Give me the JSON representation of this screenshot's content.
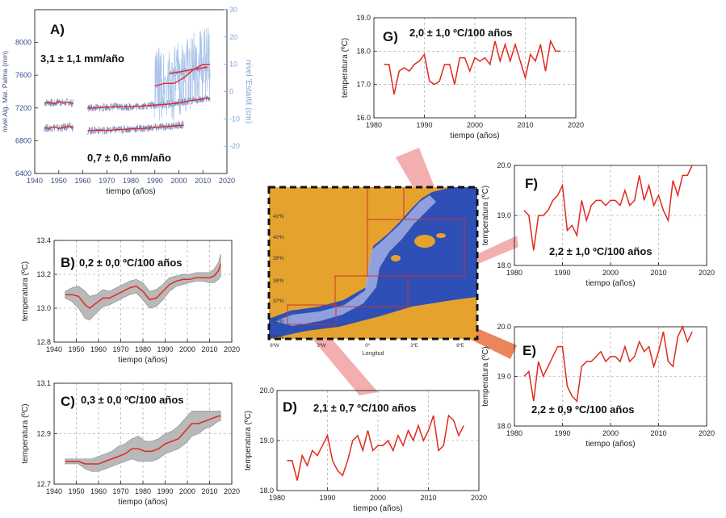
{
  "chart_data": [
    {
      "id": "A",
      "type": "line",
      "panel_label": "A)",
      "annotations": [
        "3,1 ± 1,1 mm/año",
        "0,7 ± 0,6 mm/año"
      ],
      "xlabel": "tiempo (años)",
      "ylabel": "nivel Alg. Mal. Palma (mm)",
      "ylabel_right": "nivel 'Estartit (cm)",
      "xlim": [
        1940,
        2020
      ],
      "ylim": [
        6400,
        8400
      ],
      "x_ticks": [
        "1940",
        "1950",
        "1960",
        "1970",
        "1980",
        "1990",
        "2000",
        "2010",
        "2020"
      ],
      "y_ticks": [
        "6400",
        "6800",
        "7200",
        "7600",
        "8000"
      ],
      "y2_ticks": [
        "-20",
        "-10",
        "0",
        "10",
        "20",
        "30"
      ],
      "series": [
        {
          "x": [
            1944,
            1946,
            1948,
            1950,
            1952,
            1954,
            1956
          ],
          "y": [
            7260,
            7270,
            7250,
            7280,
            7260,
            7270,
            7255
          ]
        },
        {
          "x": [
            1944,
            1946,
            1948,
            1950,
            1952,
            1954,
            1956
          ],
          "y": [
            6960,
            6950,
            6970,
            6950,
            6960,
            6975,
            6960
          ]
        },
        {
          "x": [
            1962,
            1966,
            1970,
            1975,
            1980,
            1985,
            1990,
            1995,
            2000,
            2005,
            2010,
            2013
          ],
          "y": [
            7200,
            7200,
            7210,
            7215,
            7215,
            7225,
            7235,
            7245,
            7260,
            7290,
            7310,
            7320
          ]
        },
        {
          "x": [
            1962,
            1966,
            1970,
            1975,
            1980,
            1985,
            1990,
            1995,
            2000,
            2002
          ],
          "y": [
            6920,
            6930,
            6925,
            6935,
            6945,
            6950,
            6960,
            6975,
            6985,
            6990
          ]
        },
        {
          "x": [
            1996,
            2000,
            2004,
            2008,
            2012
          ],
          "y": [
            7620,
            7640,
            7660,
            7680,
            7700
          ]
        },
        {
          "x": [
            1990,
            1994,
            1998,
            2002,
            2006,
            2010,
            2013
          ],
          "y": [
            2,
            3,
            3,
            5,
            8,
            10,
            10
          ],
          "axis": "right"
        }
      ]
    },
    {
      "id": "B",
      "type": "area",
      "panel_label": "B)",
      "annotation": "0,2 ± 0,0 ºC/100 años",
      "xlabel": "tiempo (años)",
      "ylabel": "temperatura (ºC)",
      "xlim": [
        1940,
        2020
      ],
      "ylim": [
        12.8,
        13.4
      ],
      "x_ticks": [
        "1940",
        "1950",
        "1960",
        "1970",
        "1980",
        "1990",
        "2000",
        "2010",
        "2020"
      ],
      "y_ticks": [
        "12.8",
        "13.0",
        "13.2",
        "13.4"
      ],
      "x": [
        1945,
        1948,
        1951,
        1954,
        1956,
        1959,
        1962,
        1965,
        1968,
        1971,
        1974,
        1977,
        1980,
        1983,
        1986,
        1989,
        1992,
        1995,
        1998,
        2001,
        2004,
        2007,
        2010,
        2012,
        2014,
        2015
      ],
      "y": [
        13.08,
        13.08,
        13.07,
        13.02,
        13.0,
        13.03,
        13.06,
        13.06,
        13.08,
        13.1,
        13.12,
        13.13,
        13.1,
        13.05,
        13.06,
        13.1,
        13.14,
        13.16,
        13.17,
        13.17,
        13.18,
        13.18,
        13.18,
        13.19,
        13.22,
        13.26
      ],
      "lower": [
        13.06,
        13.04,
        13.0,
        12.94,
        12.93,
        12.97,
        13.01,
        13.02,
        13.04,
        13.06,
        13.08,
        13.09,
        13.05,
        13.0,
        13.01,
        13.05,
        13.1,
        13.13,
        13.14,
        13.15,
        13.16,
        13.16,
        13.15,
        13.15,
        13.17,
        13.19
      ],
      "upper": [
        13.1,
        13.12,
        13.13,
        13.1,
        13.07,
        13.08,
        13.11,
        13.1,
        13.12,
        13.14,
        13.16,
        13.17,
        13.15,
        13.1,
        13.11,
        13.14,
        13.18,
        13.19,
        13.2,
        13.2,
        13.21,
        13.21,
        13.21,
        13.23,
        13.27,
        13.32
      ]
    },
    {
      "id": "C",
      "type": "area",
      "panel_label": "C)",
      "annotation": "0,3 ± 0,0 ºC/100 años",
      "xlabel": "tiempo (años)",
      "ylabel": "temperatura (ºC)",
      "xlim": [
        1940,
        2020
      ],
      "ylim": [
        12.7,
        13.1
      ],
      "x_ticks": [
        "1940",
        "1950",
        "1960",
        "1970",
        "1980",
        "1990",
        "2000",
        "2010",
        "2020"
      ],
      "y_ticks": [
        "12.7",
        "12.9",
        "13.1"
      ],
      "x": [
        1945,
        1948,
        1951,
        1954,
        1957,
        1960,
        1963,
        1966,
        1969,
        1972,
        1975,
        1978,
        1981,
        1984,
        1987,
        1990,
        1993,
        1996,
        1999,
        2002,
        2005,
        2008,
        2011,
        2014,
        2015
      ],
      "y": [
        12.79,
        12.79,
        12.79,
        12.78,
        12.78,
        12.78,
        12.79,
        12.8,
        12.81,
        12.82,
        12.84,
        12.84,
        12.83,
        12.83,
        12.84,
        12.86,
        12.87,
        12.88,
        12.91,
        12.94,
        12.94,
        12.95,
        12.96,
        12.97,
        12.97
      ],
      "lower": [
        12.78,
        12.78,
        12.78,
        12.76,
        12.75,
        12.75,
        12.76,
        12.77,
        12.78,
        12.79,
        12.8,
        12.79,
        12.79,
        12.79,
        12.8,
        12.82,
        12.83,
        12.84,
        12.86,
        12.89,
        12.9,
        12.92,
        12.93,
        12.95,
        12.95
      ],
      "upper": [
        12.8,
        12.8,
        12.8,
        12.8,
        12.8,
        12.81,
        12.82,
        12.83,
        12.85,
        12.86,
        12.88,
        12.89,
        12.87,
        12.87,
        12.88,
        12.9,
        12.91,
        12.93,
        12.96,
        12.99,
        12.99,
        12.99,
        12.99,
        12.99,
        12.99
      ]
    },
    {
      "id": "D",
      "type": "line",
      "panel_label": "D)",
      "annotation": "2,1 ± 0,7 ºC/100 años",
      "xlabel": "tiempo (años)",
      "ylabel": "temperatura (ºC)",
      "xlim": [
        1980,
        2020
      ],
      "ylim": [
        18.0,
        20.0
      ],
      "x_ticks": [
        "1980",
        "1990",
        "2000",
        "2010",
        "2020"
      ],
      "y_ticks": [
        "18.0",
        "19.0",
        "20.0"
      ],
      "x": [
        1982,
        1983,
        1984,
        1985,
        1986,
        1987,
        1988,
        1989,
        1990,
        1991,
        1992,
        1993,
        1994,
        1995,
        1996,
        1997,
        1998,
        1999,
        2000,
        2001,
        2002,
        2003,
        2004,
        2005,
        2006,
        2007,
        2008,
        2009,
        2010,
        2011,
        2012,
        2013,
        2014,
        2015,
        2016,
        2017
      ],
      "y": [
        18.6,
        18.6,
        18.2,
        18.7,
        18.5,
        18.8,
        18.7,
        18.9,
        19.1,
        18.6,
        18.4,
        18.3,
        18.6,
        19.0,
        19.1,
        18.8,
        19.2,
        18.8,
        18.9,
        18.9,
        19.0,
        18.8,
        19.1,
        18.9,
        19.2,
        19.0,
        19.3,
        19.0,
        19.2,
        19.5,
        18.8,
        18.9,
        19.5,
        19.4,
        19.1,
        19.3
      ]
    },
    {
      "id": "E",
      "type": "line",
      "panel_label": "E)",
      "annotation": "2,2 ± 0,9 ºC/100 años",
      "xlabel": "tiempo (años)",
      "ylabel": "temperatura (ºC)",
      "xlim": [
        1980,
        2020
      ],
      "ylim": [
        18.0,
        20.0
      ],
      "x_ticks": [
        "1980",
        "1990",
        "2000",
        "2010",
        "2020"
      ],
      "y_ticks": [
        "18.0",
        "19.0",
        "20.0"
      ],
      "x": [
        1982,
        1983,
        1984,
        1985,
        1986,
        1987,
        1988,
        1989,
        1990,
        1991,
        1992,
        1993,
        1994,
        1995,
        1996,
        1997,
        1998,
        1999,
        2000,
        2001,
        2002,
        2003,
        2004,
        2005,
        2006,
        2007,
        2008,
        2009,
        2010,
        2011,
        2012,
        2013,
        2014,
        2015,
        2016,
        2017
      ],
      "y": [
        19.0,
        19.1,
        18.5,
        19.3,
        19.0,
        19.2,
        19.4,
        19.6,
        19.6,
        18.8,
        18.6,
        18.5,
        19.2,
        19.3,
        19.3,
        19.4,
        19.5,
        19.3,
        19.4,
        19.4,
        19.3,
        19.6,
        19.3,
        19.4,
        19.7,
        19.5,
        19.6,
        19.2,
        19.5,
        19.9,
        19.3,
        19.2,
        19.8,
        20.0,
        19.7,
        19.9
      ]
    },
    {
      "id": "F",
      "type": "line",
      "panel_label": "F)",
      "annotation": "2,2 ± 1,0 ºC/100 años",
      "xlabel": "tiempo (años)",
      "ylabel": "temperatura (ºC)",
      "xlim": [
        1980,
        2020
      ],
      "ylim": [
        18.0,
        20.0
      ],
      "x_ticks": [
        "1980",
        "1990",
        "2000",
        "2010",
        "2020"
      ],
      "y_ticks": [
        "18.0",
        "19.0",
        "20.0"
      ],
      "x": [
        1982,
        1983,
        1984,
        1985,
        1986,
        1987,
        1988,
        1989,
        1990,
        1991,
        1992,
        1993,
        1994,
        1995,
        1996,
        1997,
        1998,
        1999,
        2000,
        2001,
        2002,
        2003,
        2004,
        2005,
        2006,
        2007,
        2008,
        2009,
        2010,
        2011,
        2012,
        2013,
        2014,
        2015,
        2016,
        2017
      ],
      "y": [
        19.1,
        19.0,
        18.3,
        19.0,
        19.0,
        19.1,
        19.3,
        19.4,
        19.6,
        18.7,
        18.8,
        18.6,
        19.3,
        18.9,
        19.2,
        19.3,
        19.3,
        19.2,
        19.3,
        19.3,
        19.2,
        19.5,
        19.2,
        19.3,
        19.8,
        19.3,
        19.6,
        19.2,
        19.4,
        19.1,
        18.9,
        19.7,
        19.4,
        19.8,
        19.8,
        20.0
      ]
    },
    {
      "id": "G",
      "type": "line",
      "panel_label": "G)",
      "annotation": "2,0 ± 1,0 ºC/100 años",
      "xlabel": "tiempo (años)",
      "ylabel": "temperatura (ºC)",
      "xlim": [
        1980,
        2020
      ],
      "ylim": [
        16.0,
        19.0
      ],
      "x_ticks": [
        "1980",
        "1990",
        "2000",
        "2010",
        "2020"
      ],
      "y_ticks": [
        "16.0",
        "17.0",
        "18.0",
        "19.0"
      ],
      "x": [
        1982,
        1983,
        1984,
        1985,
        1986,
        1987,
        1988,
        1989,
        1990,
        1991,
        1992,
        1993,
        1994,
        1995,
        1996,
        1997,
        1998,
        1999,
        2000,
        2001,
        2002,
        2003,
        2004,
        2005,
        2006,
        2007,
        2008,
        2009,
        2010,
        2011,
        2012,
        2013,
        2014,
        2015,
        2016,
        2017
      ],
      "y": [
        17.6,
        17.6,
        16.7,
        17.4,
        17.5,
        17.4,
        17.6,
        17.7,
        17.9,
        17.1,
        17.0,
        17.1,
        17.6,
        17.6,
        17.0,
        17.8,
        17.8,
        17.4,
        17.8,
        17.7,
        17.8,
        17.6,
        18.3,
        17.7,
        18.2,
        17.7,
        18.2,
        17.7,
        17.2,
        17.9,
        17.7,
        18.2,
        17.4,
        18.3,
        18.0,
        18.0
      ]
    }
  ],
  "map": {
    "xlabel": "Longitud",
    "lat_ticks": [
      "35ºN",
      "36ºN",
      "37ºN",
      "38ºN",
      "39ºN",
      "40ºN",
      "41ºN"
    ],
    "lon_ticks": [
      "6ºW",
      "3ºW",
      "0º",
      "3ºE",
      "6ºE"
    ],
    "colors": {
      "land": "#e5a32e",
      "sea_deep": "#2e4fb5",
      "sea_shallow": "#9ba8e0",
      "box": "#cc3333"
    }
  },
  "colors": {
    "line": "#e02a1f",
    "band": "#b9b9b9",
    "raw_blue": "#a9c2ea",
    "raw_blue_dark": "#7a8fc6",
    "connector": "#f2a6a6",
    "connector_dark": "#e8703f"
  }
}
